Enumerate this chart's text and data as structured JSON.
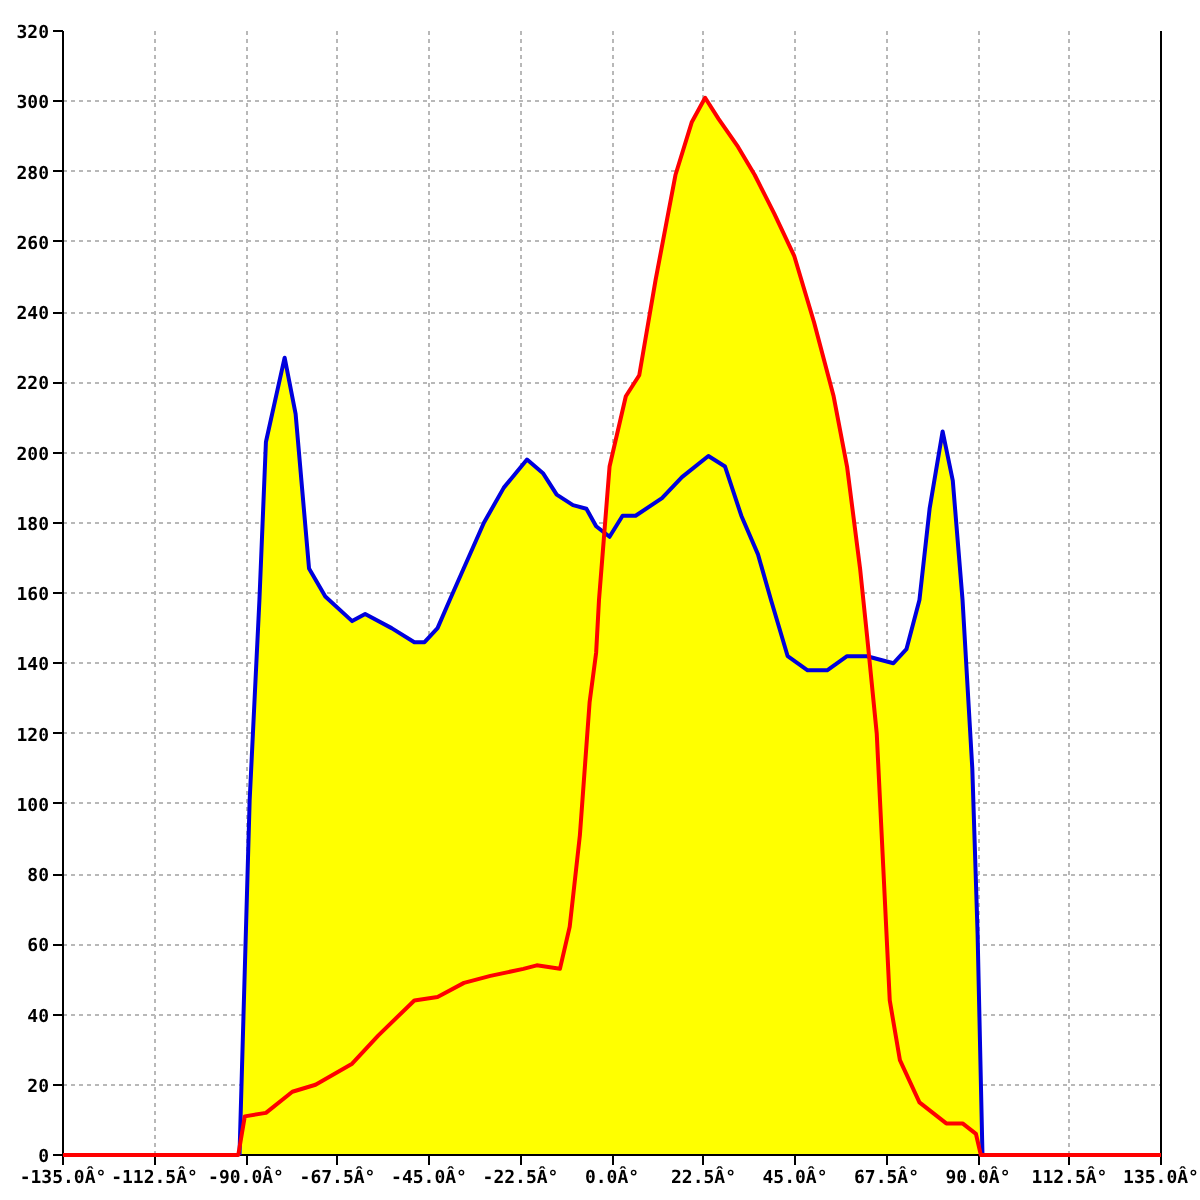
{
  "chart_data": {
    "type": "area",
    "xlim": [
      -135,
      135
    ],
    "ylim": [
      0,
      320
    ],
    "xticks": [
      {
        "value": -135,
        "label": "-135.0Â°"
      },
      {
        "value": -112.5,
        "label": "-112.5Â°"
      },
      {
        "value": -90,
        "label": "-90.0Â°"
      },
      {
        "value": -67.5,
        "label": "-67.5Â°"
      },
      {
        "value": -45,
        "label": "-45.0Â°"
      },
      {
        "value": -22.5,
        "label": "-22.5Â°"
      },
      {
        "value": 0,
        "label": "0.0Â°"
      },
      {
        "value": 22.5,
        "label": "22.5Â°"
      },
      {
        "value": 45,
        "label": "45.0Â°"
      },
      {
        "value": 67.5,
        "label": "67.5Â°"
      },
      {
        "value": 90,
        "label": "90.0Â°"
      },
      {
        "value": 112.5,
        "label": "112.5Â°"
      },
      {
        "value": 135,
        "label": "135.0Â°"
      }
    ],
    "yticks": [
      0,
      20,
      40,
      60,
      80,
      100,
      120,
      140,
      160,
      180,
      200,
      220,
      240,
      260,
      280,
      300,
      320
    ],
    "grid": true,
    "series": [
      {
        "color": "#ffff00",
        "x": [
          -91.6,
          -89.1,
          -86.7,
          -85.1,
          -80.5,
          -77.8,
          -74.5,
          -70.5,
          -63.9,
          -60.7,
          -54.2,
          -48.6,
          -46.1,
          -42.9,
          -39.9,
          -31.5,
          -26.6,
          -20.9,
          -16.9,
          -13.6,
          -9.6,
          -6.3,
          -3.9,
          -1.9,
          -0.6,
          3.4,
          6.7,
          10.7,
          15.6,
          19.6,
          22.9,
          26.2,
          31,
          35.1,
          39.9,
          44.8,
          49.7,
          54.5,
          57.8,
          61,
          62.7,
          63.2,
          69.2,
          72.4,
          75.6,
          78.1,
          81.3,
          83.8,
          86.2,
          88.6,
          89.9,
          91.1
        ],
        "values": [
          0,
          101,
          158,
          203,
          227,
          211,
          167,
          159,
          152,
          154,
          150,
          146,
          146,
          150,
          158,
          180,
          190,
          198,
          194,
          188,
          185,
          184,
          179,
          178,
          196,
          216,
          222,
          249,
          279,
          294,
          301,
          295,
          287,
          279,
          268,
          256,
          237,
          216,
          196,
          167,
          148,
          142,
          140,
          144,
          158,
          184,
          206,
          192,
          158,
          110,
          63,
          0
        ]
      },
      {
        "type": "line",
        "color": "#0000dd",
        "x": [
          -91.6,
          -89.1,
          -86.7,
          -85.1,
          -80.5,
          -77.8,
          -74.5,
          -70.5,
          -63.9,
          -60.7,
          -54.2,
          -48.6,
          -46.1,
          -42.9,
          -39.9,
          -31.5,
          -26.6,
          -20.9,
          -16.9,
          -13.6,
          -9.6,
          -6.3,
          -3.9,
          -0.6,
          2.6,
          5.8,
          12.3,
          17.2,
          23.7,
          27.8,
          31.8,
          35.9,
          39.1,
          43.2,
          48.1,
          52.9,
          57.8,
          62.7,
          69.2,
          72.4,
          75.6,
          78.1,
          81.3,
          83.8,
          86.2,
          88.6,
          89.9,
          91.1
        ],
        "values": [
          0,
          101,
          158,
          203,
          227,
          211,
          167,
          159,
          152,
          154,
          150,
          146,
          146,
          150,
          158,
          180,
          190,
          198,
          194,
          188,
          185,
          184,
          179,
          176,
          182,
          182,
          187,
          193,
          199,
          196,
          182,
          171,
          158,
          142,
          138,
          138,
          142,
          142,
          140,
          144,
          158,
          184,
          206,
          192,
          158,
          110,
          63,
          0
        ]
      },
      {
        "type": "line",
        "color": "#ff0000",
        "x": [
          -135,
          -91.9,
          -90.3,
          -85.1,
          -78.6,
          -72.9,
          -63.9,
          -57.5,
          -48.6,
          -42.9,
          -36.4,
          -29.9,
          -21.8,
          -18.5,
          -12.8,
          -10.4,
          -7.9,
          -5.5,
          -3.9,
          -3.2,
          -0.6,
          3.4,
          6.7,
          10.7,
          15.6,
          19.6,
          22.9,
          26.2,
          31,
          35.1,
          39.9,
          44.8,
          49.7,
          54.5,
          57.8,
          61,
          62.7,
          65.1,
          66.7,
          68.3,
          70.8,
          75.6,
          82.2,
          86.2,
          89.5,
          90.7,
          135
        ],
        "values": [
          0,
          0,
          11,
          12,
          18,
          20,
          26,
          34,
          44,
          45,
          49,
          51,
          53,
          54,
          53,
          65,
          91,
          129,
          143,
          158,
          196,
          216,
          222,
          249,
          279,
          294,
          301,
          295,
          287,
          279,
          268,
          256,
          237,
          216,
          196,
          167,
          148,
          120,
          82,
          44,
          27,
          15,
          9,
          9,
          6,
          0,
          0
        ]
      }
    ]
  }
}
